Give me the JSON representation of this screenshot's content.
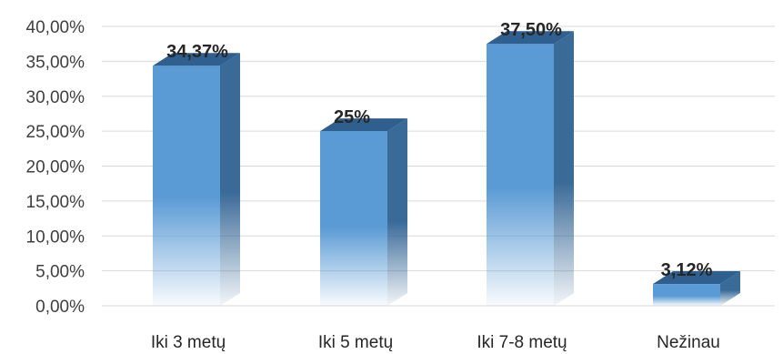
{
  "chart_data": {
    "type": "bar",
    "categories": [
      "Iki 3 metų",
      "Iki 5 metų",
      "Iki 7-8 metų",
      "Nežinau"
    ],
    "values": [
      34.37,
      25,
      37.5,
      3.12
    ],
    "data_labels": [
      "34,37%",
      "25%",
      "37,50%",
      "3,12%"
    ],
    "y_ticks": [
      "0,00%",
      "5,00%",
      "10,00%",
      "15,00%",
      "20,00%",
      "25,00%",
      "30,00%",
      "35,00%",
      "40,00%"
    ],
    "ylim": [
      0,
      40
    ],
    "y_step": 5,
    "grid": true,
    "style": "3d-column",
    "colors": {
      "bar_top": "#5b9bd5",
      "bar_front": "#5b9bd5",
      "bar_side": "#3a6a98",
      "bar_roof": "#2f5f8f",
      "grid": "#d9d9d9"
    }
  }
}
